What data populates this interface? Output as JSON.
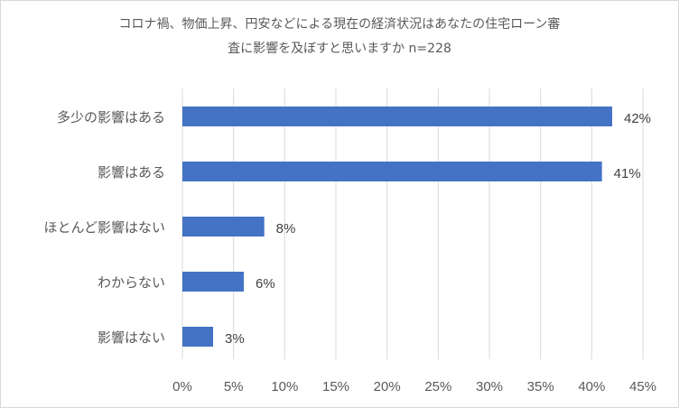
{
  "chart_data": {
    "type": "bar",
    "orientation": "horizontal",
    "title_line1": "コロナ禍、物価上昇、円安などによる現在の経済状況はあなたの住宅ローン審",
    "title_line2": "査に影響を及ぼすと思いますか n=228",
    "categories": [
      "多少の影響はある",
      "影響はある",
      "ほとんど影響はない",
      "わからない",
      "影響はない"
    ],
    "values": [
      42,
      41,
      8,
      6,
      3
    ],
    "data_labels": [
      "42%",
      "41%",
      "8%",
      "6%",
      "3%"
    ],
    "x_ticks": [
      0,
      5,
      10,
      15,
      20,
      25,
      30,
      35,
      40,
      45
    ],
    "x_tick_labels": [
      "0%",
      "5%",
      "10%",
      "15%",
      "20%",
      "25%",
      "30%",
      "35%",
      "40%",
      "45%"
    ],
    "xlim": [
      0,
      45
    ],
    "grid": true,
    "legend": "none",
    "bar_color": "#4472c4",
    "grid_color": "#d9d9d9"
  }
}
